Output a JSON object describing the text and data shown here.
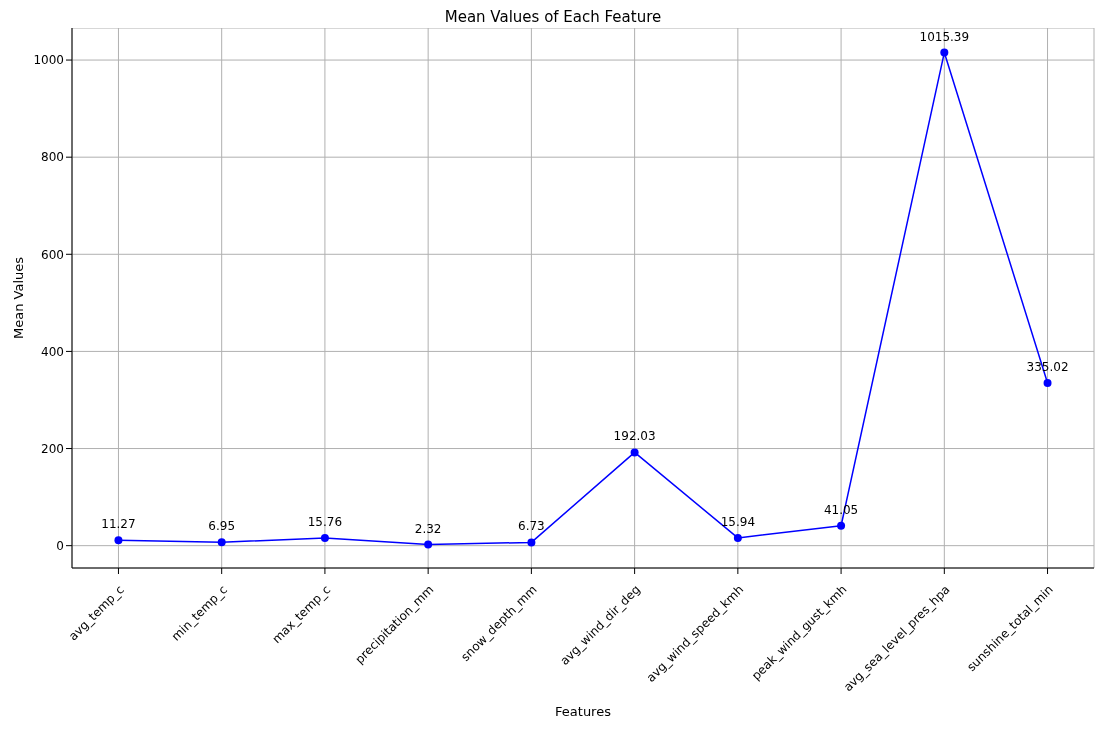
{
  "chart_data": {
    "type": "line",
    "title": "Mean Values of Each Feature",
    "xlabel": "Features",
    "ylabel": "Mean Values",
    "categories": [
      "avg_temp_c",
      "min_temp_c",
      "max_temp_c",
      "precipitation_mm",
      "snow_depth_mm",
      "avg_wind_dir_deg",
      "avg_wind_speed_kmh",
      "peak_wind_gust_kmh",
      "avg_sea_level_pres_hpa",
      "sunshine_total_min"
    ],
    "values": [
      11.27,
      6.95,
      15.76,
      2.32,
      6.73,
      192.03,
      15.94,
      41.05,
      1015.39,
      335.02
    ],
    "color": "#0000ff",
    "ylim": [
      -46,
      1066
    ],
    "yticks": [
      0,
      200,
      400,
      600,
      800,
      1000
    ],
    "grid": true,
    "marker": "circle",
    "line_style": "solid",
    "data_labels": true
  }
}
